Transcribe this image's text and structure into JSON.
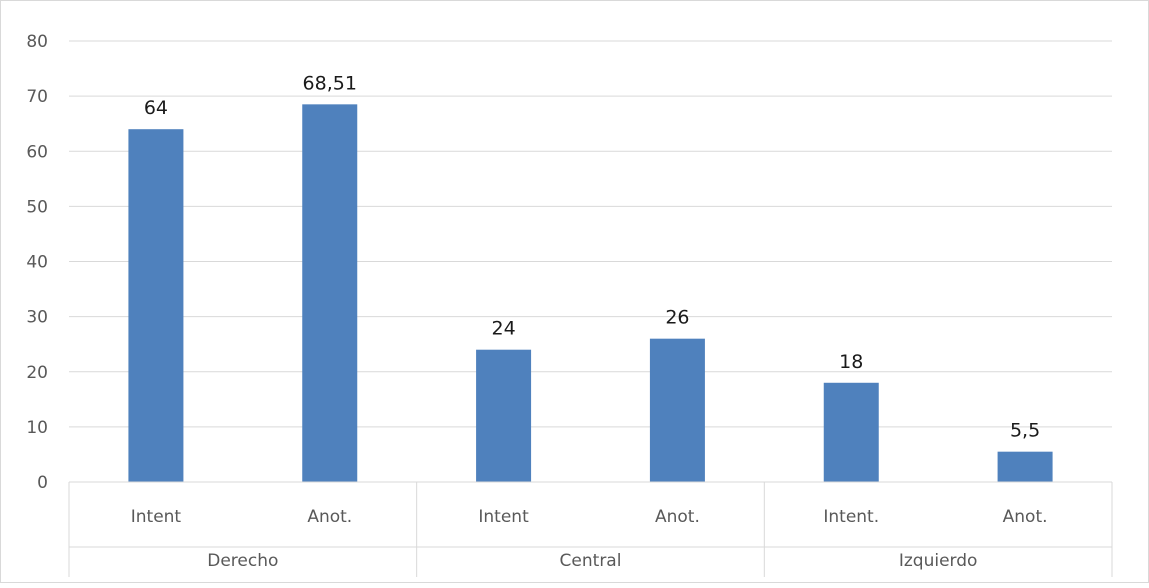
{
  "chart_data": {
    "type": "bar",
    "title": "",
    "xlabel": "",
    "ylabel": "",
    "ylim": [
      0,
      80
    ],
    "yticks": [
      0,
      10,
      20,
      30,
      40,
      50,
      60,
      70,
      80
    ],
    "grid": true,
    "legend": "none",
    "bar_color": "#4f81bd",
    "groups": [
      {
        "name": "Derecho",
        "categories": [
          "Intent",
          "Anot."
        ],
        "values": [
          64,
          68.51
        ],
        "labels": [
          "64",
          "68,51"
        ]
      },
      {
        "name": "Central",
        "categories": [
          "Intent",
          "Anot."
        ],
        "values": [
          24,
          26
        ],
        "labels": [
          "24",
          "26"
        ]
      },
      {
        "name": "Izquierdo",
        "categories": [
          "Intent.",
          "Anot."
        ],
        "values": [
          18,
          5.5
        ],
        "labels": [
          "18",
          "5,5"
        ]
      }
    ]
  }
}
